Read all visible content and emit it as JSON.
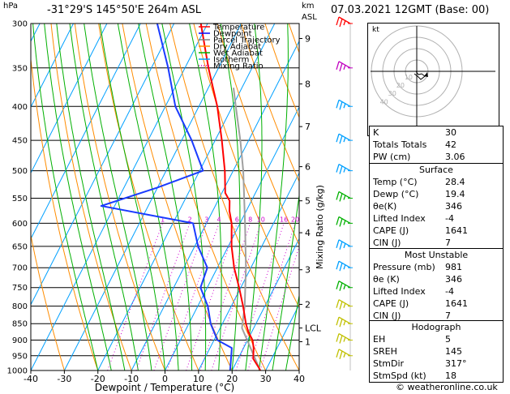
{
  "header": {
    "hpa_unit": "hPa",
    "location": "-31°29'S  145°50'E  264m  ASL",
    "km_unit": "km",
    "asl_unit": "ASL",
    "datetime": "07.03.2021  12GMT  (Base: 00)"
  },
  "legend": [
    {
      "label": "Temperature",
      "color": "#ff0000"
    },
    {
      "label": "Dewpoint",
      "color": "#0000ff"
    },
    {
      "label": "Parcel Trajectory",
      "color": "#808080"
    },
    {
      "label": "Dry Adiabat",
      "color": "#ff8c00"
    },
    {
      "label": "Wet Adiabat",
      "color": "#00b000"
    },
    {
      "label": "Isotherm",
      "color": "#00a0ff"
    },
    {
      "label": "Mixing Ratio",
      "color": "#d000d0"
    }
  ],
  "chart_data": {
    "type": "skew-t",
    "xlabel": "Dewpoint / Temperature (°C)",
    "ylabel_right": "Mixing Ratio (g/kg)",
    "pressure_levels": [
      300,
      350,
      400,
      450,
      500,
      550,
      600,
      650,
      700,
      750,
      800,
      850,
      900,
      950,
      1000
    ],
    "temperature_ticks": [
      -40,
      -30,
      -20,
      -10,
      0,
      10,
      20,
      30,
      40
    ],
    "xlim": [
      -40,
      40
    ],
    "ylim_hpa": [
      1000,
      300
    ],
    "height_km": [
      {
        "label": "9",
        "p": 316
      },
      {
        "label": "8",
        "p": 370
      },
      {
        "label": "7",
        "p": 429
      },
      {
        "label": "6",
        "p": 493
      },
      {
        "label": "5",
        "p": 555
      },
      {
        "label": "4",
        "p": 620
      },
      {
        "label": "3",
        "p": 705
      },
      {
        "label": "2",
        "p": 795
      },
      {
        "label": "LCL",
        "p": 863
      },
      {
        "label": "1",
        "p": 905
      }
    ],
    "mixing_ratio_labels": [
      "1",
      "2",
      "3",
      "4",
      "6",
      "8",
      "10",
      "16",
      "20",
      "25"
    ],
    "mixing_ratio_values": [
      1,
      2,
      3,
      4,
      6,
      8,
      10,
      16,
      20,
      25
    ],
    "temperature_profile": [
      {
        "p": 1000,
        "t": 28.4
      },
      {
        "p": 990,
        "t": 27.5
      },
      {
        "p": 960,
        "t": 24.5
      },
      {
        "p": 925,
        "t": 23.0
      },
      {
        "p": 900,
        "t": 21.5
      },
      {
        "p": 875,
        "t": 19.0
      },
      {
        "p": 850,
        "t": 17.0
      },
      {
        "p": 800,
        "t": 13.5
      },
      {
        "p": 750,
        "t": 9.5
      },
      {
        "p": 700,
        "t": 5.0
      },
      {
        "p": 650,
        "t": 1.0
      },
      {
        "p": 600,
        "t": -2.5
      },
      {
        "p": 575,
        "t": -5.0
      },
      {
        "p": 555,
        "t": -6.5
      },
      {
        "p": 540,
        "t": -9.0
      },
      {
        "p": 500,
        "t": -12.5
      },
      {
        "p": 450,
        "t": -18.0
      },
      {
        "p": 400,
        "t": -24.5
      },
      {
        "p": 350,
        "t": -33.0
      },
      {
        "p": 300,
        "t": -42.0
      }
    ],
    "dewpoint_profile": [
      {
        "p": 1000,
        "t": 19.4
      },
      {
        "p": 950,
        "t": 17.5
      },
      {
        "p": 925,
        "t": 16.5
      },
      {
        "p": 900,
        "t": 11.0
      },
      {
        "p": 850,
        "t": 6.5
      },
      {
        "p": 800,
        "t": 3.0
      },
      {
        "p": 750,
        "t": -2.0
      },
      {
        "p": 700,
        "t": -3.0
      },
      {
        "p": 650,
        "t": -9.0
      },
      {
        "p": 600,
        "t": -14.0
      },
      {
        "p": 565,
        "t": -44.0
      },
      {
        "p": 530,
        "t": -30.0
      },
      {
        "p": 500,
        "t": -19.0
      },
      {
        "p": 450,
        "t": -27.0
      },
      {
        "p": 400,
        "t": -37.0
      },
      {
        "p": 350,
        "t": -45.0
      },
      {
        "p": 300,
        "t": -55.0
      }
    ],
    "parcel_profile": [
      {
        "p": 1000,
        "t": 28.4
      },
      {
        "p": 863,
        "t": 16.5
      },
      {
        "p": 800,
        "t": 14.0
      },
      {
        "p": 700,
        "t": 8.5
      },
      {
        "p": 600,
        "t": 1.5
      },
      {
        "p": 500,
        "t": -7.0
      },
      {
        "p": 450,
        "t": -12.5
      },
      {
        "p": 400,
        "t": -19.0
      },
      {
        "p": 375,
        "t": -22.5
      }
    ],
    "wind_barbs": [
      {
        "p": 300,
        "color": "#ff0000"
      },
      {
        "p": 350,
        "color": "#c000c0"
      },
      {
        "p": 400,
        "color": "#00a0ff"
      },
      {
        "p": 450,
        "color": "#00a0ff"
      },
      {
        "p": 500,
        "color": "#00a0ff"
      },
      {
        "p": 550,
        "color": "#00b000"
      },
      {
        "p": 600,
        "color": "#00b000"
      },
      {
        "p": 650,
        "color": "#00a0ff"
      },
      {
        "p": 700,
        "color": "#00a0ff"
      },
      {
        "p": 750,
        "color": "#00b000"
      },
      {
        "p": 800,
        "color": "#c0c000"
      },
      {
        "p": 850,
        "color": "#c0c000"
      },
      {
        "p": 900,
        "color": "#c0c000"
      },
      {
        "p": 950,
        "color": "#c0c000"
      }
    ]
  },
  "hodograph": {
    "unit": "kt",
    "rings": [
      "10",
      "20",
      "30",
      "40"
    ]
  },
  "indices": {
    "top": [
      {
        "label": "K",
        "value": "30"
      },
      {
        "label": "Totals Totals",
        "value": "42"
      },
      {
        "label": "PW (cm)",
        "value": "3.06"
      }
    ],
    "surface": {
      "title": "Surface",
      "rows": [
        {
          "label": "Temp (°C)",
          "value": "28.4"
        },
        {
          "label": "Dewp (°C)",
          "value": "19.4"
        },
        {
          "label": "θe(K)",
          "value": "346"
        },
        {
          "label": "Lifted Index",
          "value": "-4"
        },
        {
          "label": "CAPE (J)",
          "value": "1641"
        },
        {
          "label": "CIN (J)",
          "value": "7"
        }
      ]
    },
    "unstable": {
      "title": "Most Unstable",
      "rows": [
        {
          "label": "Pressure (mb)",
          "value": "981"
        },
        {
          "label": "θe (K)",
          "value": "346"
        },
        {
          "label": "Lifted Index",
          "value": "-4"
        },
        {
          "label": "CAPE (J)",
          "value": "1641"
        },
        {
          "label": "CIN (J)",
          "value": "7"
        }
      ]
    },
    "hodo": {
      "title": "Hodograph",
      "rows": [
        {
          "label": "EH",
          "value": "5"
        },
        {
          "label": "SREH",
          "value": "145"
        },
        {
          "label": "StmDir",
          "value": "317°"
        },
        {
          "label": "StmSpd (kt)",
          "value": "18"
        }
      ]
    }
  },
  "footer": {
    "copyright": "© weatheronline.co.uk"
  }
}
